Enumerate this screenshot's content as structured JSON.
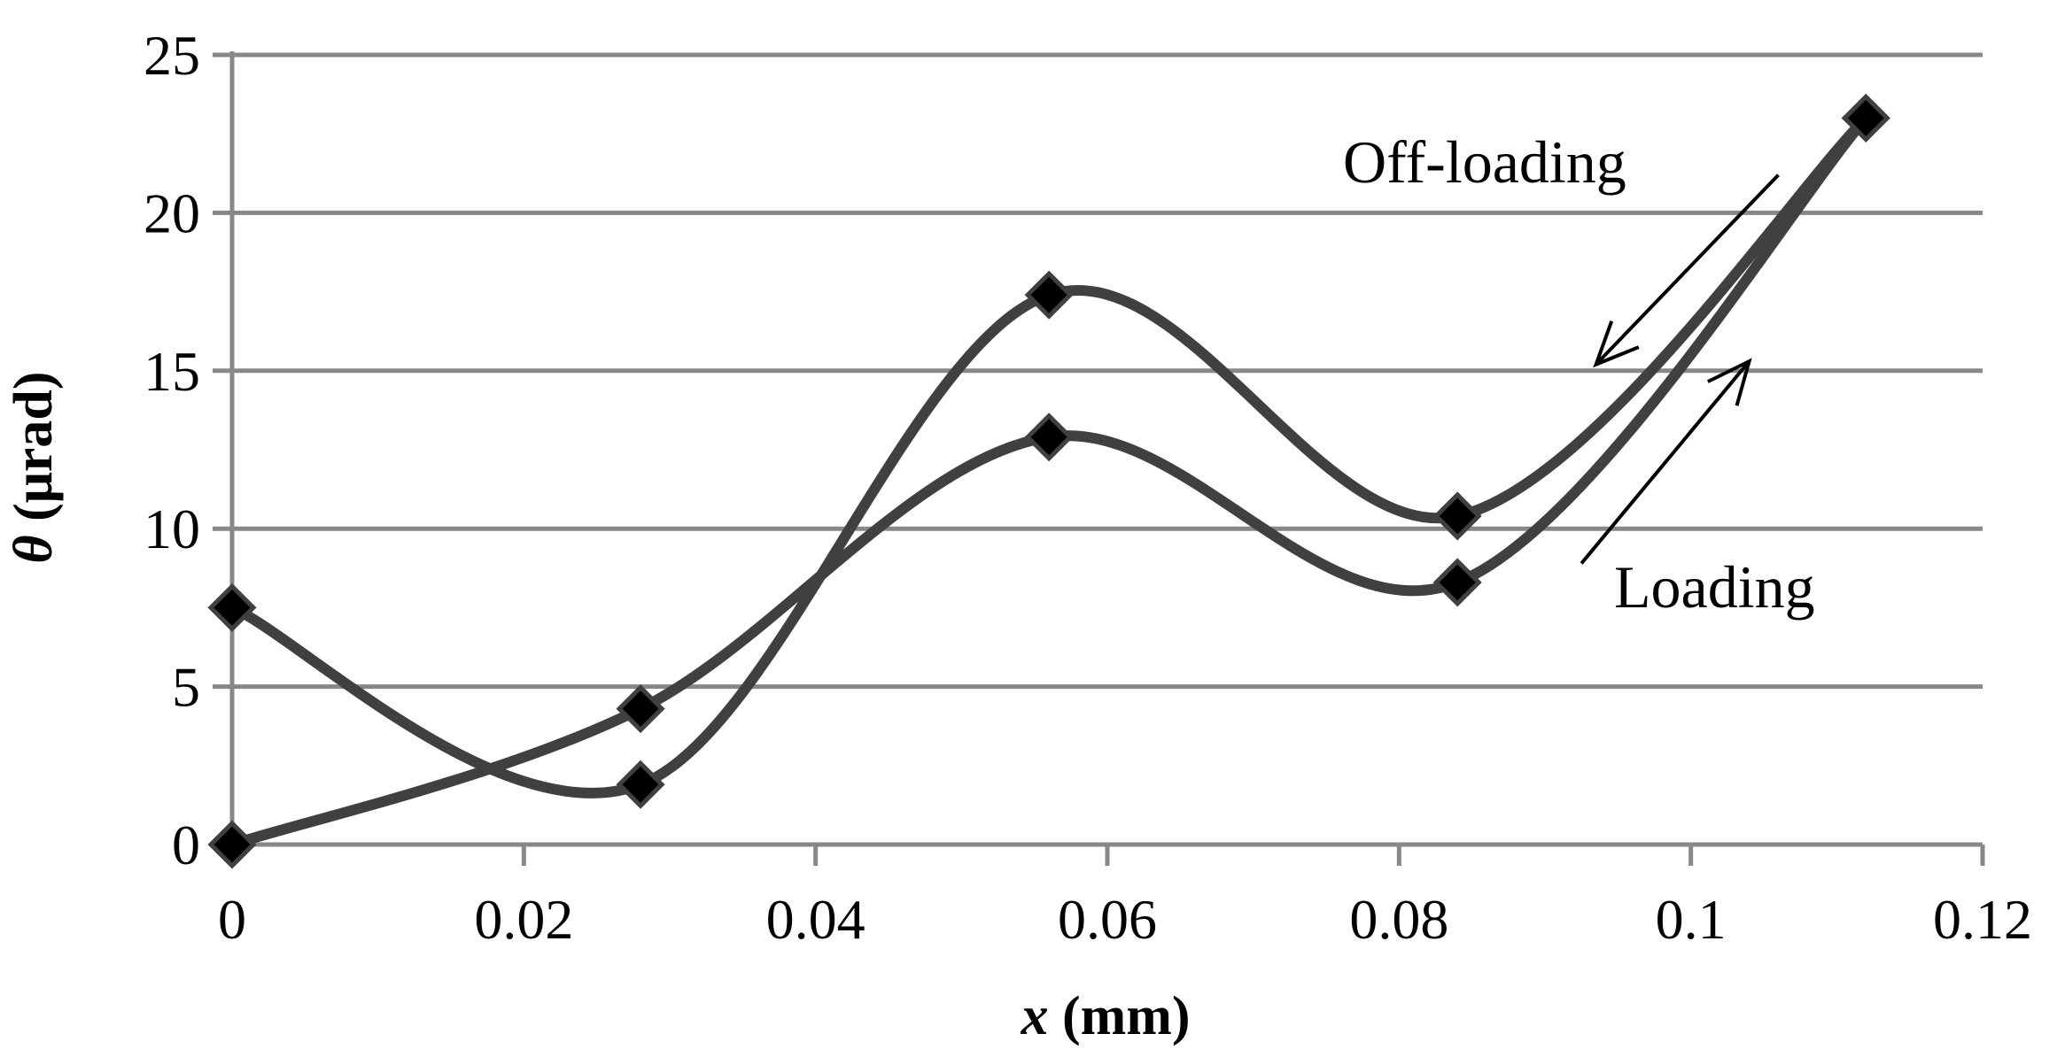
{
  "chart_data": {
    "type": "line",
    "title": "",
    "xlabel_var": "x",
    "xlabel_unit": " (mm)",
    "ylabel_var": "θ",
    "ylabel_unit": " (μrad)",
    "xlim": [
      0,
      0.12
    ],
    "ylim": [
      0,
      25
    ],
    "x_ticks": [
      0,
      0.02,
      0.04,
      0.06,
      0.08,
      0.1,
      0.12
    ],
    "x_tick_labels": [
      "0",
      "0.02",
      "0.04",
      "0.06",
      "0.08",
      "0.1",
      "0.12"
    ],
    "y_ticks": [
      0,
      5,
      10,
      15,
      20,
      25
    ],
    "y_tick_labels": [
      "0",
      "5",
      "10",
      "15",
      "20",
      "25"
    ],
    "grid": "horizontal",
    "marker": "diamond",
    "line_color": "#404040",
    "marker_color": "#000000",
    "grid_color": "#888888",
    "series": [
      {
        "name": "Loading",
        "x": [
          0,
          0.028,
          0.056,
          0.084,
          0.112
        ],
        "y": [
          0,
          4.3,
          12.9,
          8.3,
          23
        ]
      },
      {
        "name": "Off-loading",
        "x": [
          0,
          0.028,
          0.056,
          0.084,
          0.112
        ],
        "y": [
          7.5,
          1.9,
          17.4,
          10.4,
          23
        ]
      }
    ],
    "annotations": [
      {
        "text": "Off-loading",
        "arrow_from": [
          0.106,
          21.2
        ],
        "arrow_to": [
          0.0935,
          15.2
        ]
      },
      {
        "text": "Loading",
        "arrow_from": [
          0.0925,
          8.9
        ],
        "arrow_to": [
          0.104,
          15.3
        ]
      }
    ]
  }
}
